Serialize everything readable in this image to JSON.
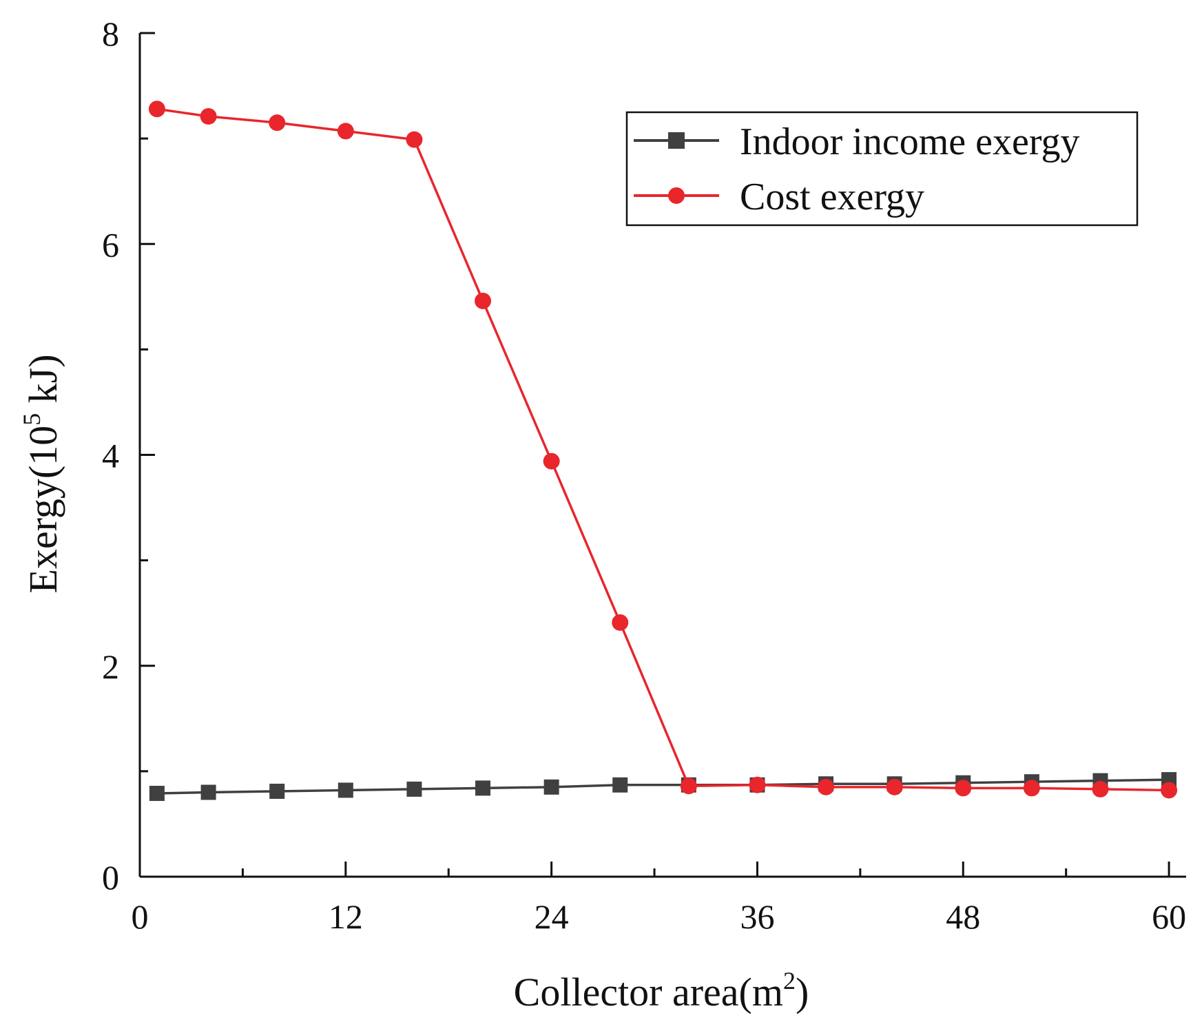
{
  "chart_data": {
    "type": "line",
    "title": "",
    "xlabel": {
      "prefix": "Collector area(m",
      "sup": "2",
      "suffix": ")"
    },
    "ylabel": {
      "prefix": "Exergy(10",
      "sup": "5",
      "suffix": " kJ)"
    },
    "xlim": [
      0,
      61
    ],
    "ylim": [
      0,
      8
    ],
    "xticks": [
      0,
      12,
      24,
      36,
      48,
      60
    ],
    "xtick_labels": [
      "0",
      "12",
      "24",
      "36",
      "48",
      "60"
    ],
    "xminor": [
      6,
      18,
      30,
      42,
      54
    ],
    "yticks": [
      0,
      2,
      4,
      6,
      8
    ],
    "ytick_labels": [
      "0",
      "2",
      "4",
      "6",
      "8"
    ],
    "yminor": [
      1,
      3,
      5,
      7
    ],
    "grid": false,
    "legend_position": "top-right",
    "x": [
      1,
      4,
      8,
      12,
      16,
      20,
      24,
      28,
      32,
      36,
      40,
      44,
      48,
      52,
      56,
      60
    ],
    "series": [
      {
        "name": "Indoor income exergy",
        "color": "#404040",
        "marker": "square",
        "values": [
          0.79,
          0.8,
          0.81,
          0.82,
          0.83,
          0.84,
          0.85,
          0.87,
          0.87,
          0.87,
          0.88,
          0.88,
          0.89,
          0.9,
          0.91,
          0.92
        ]
      },
      {
        "name": "Cost exergy",
        "color": "#e8262c",
        "marker": "circle",
        "values": [
          7.28,
          7.21,
          7.15,
          7.07,
          6.99,
          5.46,
          3.94,
          2.41,
          0.86,
          0.87,
          0.85,
          0.85,
          0.84,
          0.84,
          0.83,
          0.82
        ]
      }
    ]
  }
}
